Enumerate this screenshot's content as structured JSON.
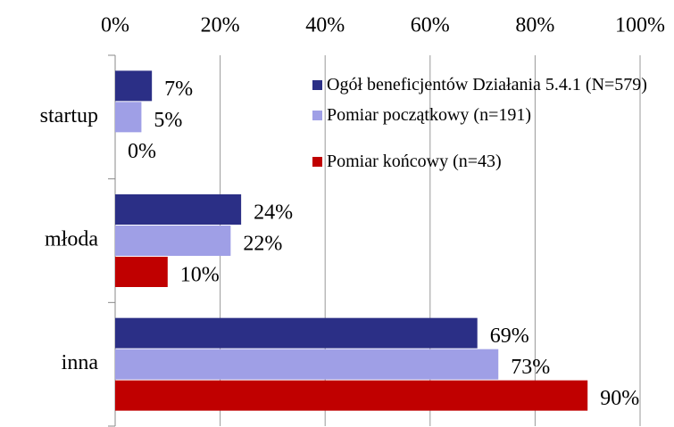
{
  "chart_data": {
    "type": "bar",
    "orientation": "horizontal",
    "categories": [
      "startup",
      "młoda",
      "inna"
    ],
    "series": [
      {
        "name": "Ogół beneficjentów Działania 5.4.1 (N=579)",
        "color": "#2b2f86",
        "values": [
          7,
          24,
          69
        ],
        "value_labels": [
          "7%",
          "24%",
          "69%"
        ]
      },
      {
        "name": "Pomiar początkowy (n=191)",
        "color": "#9f9fe6",
        "values": [
          5,
          22,
          73
        ],
        "value_labels": [
          "5%",
          "22%",
          "73%"
        ]
      },
      {
        "name": "Pomiar końcowy (n=43)",
        "color": "#c00000",
        "values": [
          0,
          10,
          90
        ],
        "value_labels": [
          "0%",
          "10%",
          "90%"
        ]
      }
    ],
    "xlim": [
      0,
      100
    ],
    "xticks": [
      {
        "value": 0,
        "label": "0%"
      },
      {
        "value": 20,
        "label": "20%"
      },
      {
        "value": 40,
        "label": "40%"
      },
      {
        "value": 60,
        "label": "60%"
      },
      {
        "value": 80,
        "label": "80%"
      },
      {
        "value": 100,
        "label": "100%"
      }
    ],
    "grid": true,
    "legend": "top-right"
  }
}
